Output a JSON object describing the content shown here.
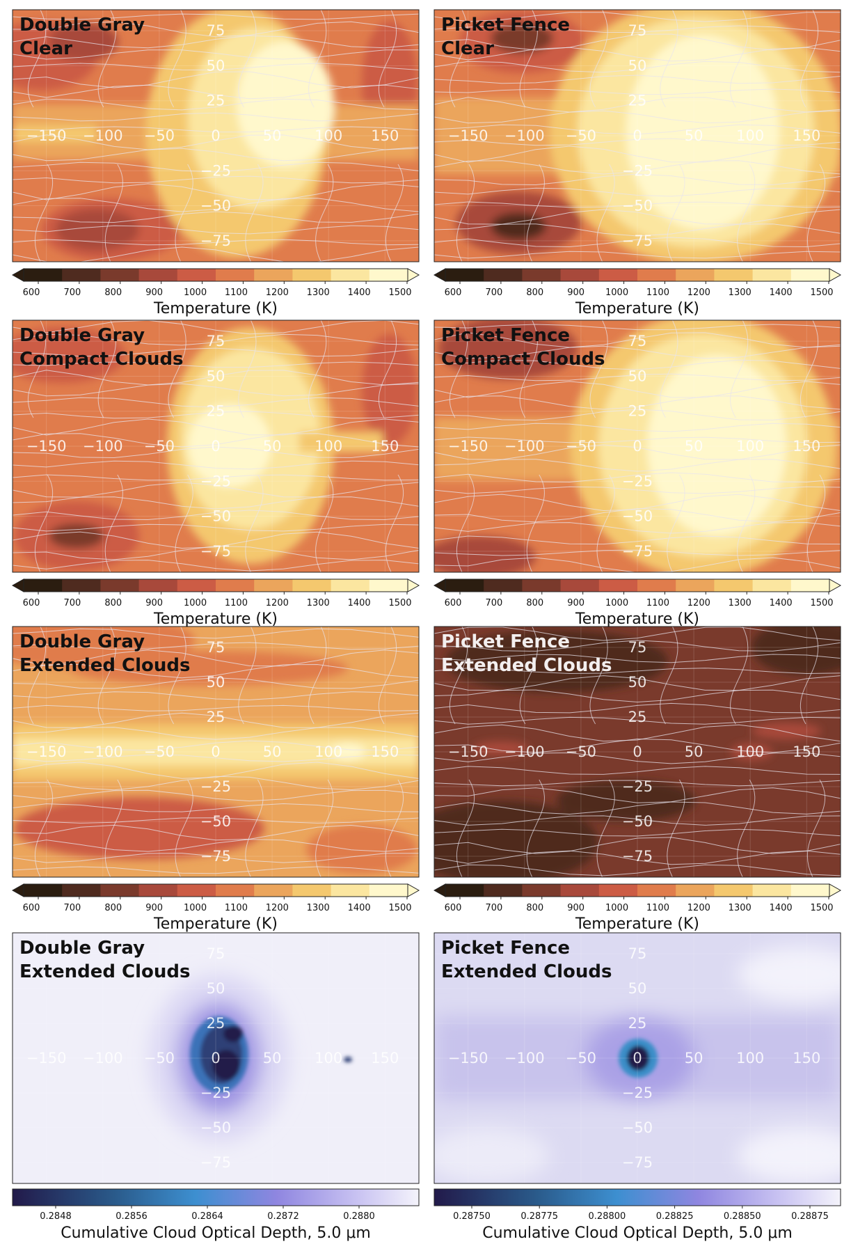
{
  "temperature_colorbar": {
    "ticks": [
      "600",
      "700",
      "800",
      "900",
      "1000",
      "1100",
      "1200",
      "1300",
      "1400",
      "1500"
    ],
    "label": "Temperature (K)",
    "colors": [
      "#2b1d10",
      "#4f2b1f",
      "#7a3a2c",
      "#a8493b",
      "#cc5c45",
      "#e07c4c",
      "#eba55c",
      "#f4c86e",
      "#fbe6a0",
      "#fff8cc"
    ]
  },
  "optical_colorbar": {
    "left": {
      "ticks": [
        "0.2848",
        "0.2856",
        "0.2864",
        "0.2872",
        "0.2880"
      ],
      "label": "Cumulative Cloud Optical Depth, 5.0 μm"
    },
    "right": {
      "ticks": [
        "0.28750",
        "0.28775",
        "0.28800",
        "0.28825",
        "0.28850",
        "0.28875"
      ],
      "label": "Cumulative Cloud Optical Depth, 5.0 μm"
    }
  },
  "axis_ticks": {
    "x": [
      "−150",
      "−100",
      "−50",
      "0",
      "50",
      "100",
      "150"
    ],
    "y": [
      "75",
      "50",
      "25",
      "−25",
      "−50",
      "−75"
    ]
  },
  "panels": [
    {
      "id": "dg-clear",
      "title_line1": "Double Gray",
      "title_line2": "Clear"
    },
    {
      "id": "pf-clear",
      "title_line1": "Picket Fence",
      "title_line2": "Clear"
    },
    {
      "id": "dg-compact",
      "title_line1": "Double Gray",
      "title_line2": "Compact Clouds"
    },
    {
      "id": "pf-compact",
      "title_line1": "Picket Fence",
      "title_line2": "Compact Clouds"
    },
    {
      "id": "dg-extended",
      "title_line1": "Double Gray",
      "title_line2": "Extended Clouds"
    },
    {
      "id": "pf-extended",
      "title_line1": "Picket Fence",
      "title_line2": "Extended Clouds"
    },
    {
      "id": "dg-optical",
      "title_line1": "Double Gray",
      "title_line2": "Extended Clouds"
    },
    {
      "id": "pf-optical",
      "title_line1": "Picket Fence",
      "title_line2": "Extended Clouds"
    }
  ],
  "chart_data": [
    {
      "type": "heatmap",
      "title": "Double Gray Clear",
      "colorbar_label": "Temperature (K)",
      "xlim": [
        -180,
        180
      ],
      "ylim": [
        -90,
        90
      ],
      "clim": [
        600,
        1500
      ]
    },
    {
      "type": "heatmap",
      "title": "Picket Fence Clear",
      "colorbar_label": "Temperature (K)",
      "xlim": [
        -180,
        180
      ],
      "ylim": [
        -90,
        90
      ],
      "clim": [
        600,
        1500
      ]
    },
    {
      "type": "heatmap",
      "title": "Double Gray Compact Clouds",
      "colorbar_label": "Temperature (K)",
      "xlim": [
        -180,
        180
      ],
      "ylim": [
        -90,
        90
      ],
      "clim": [
        600,
        1500
      ]
    },
    {
      "type": "heatmap",
      "title": "Picket Fence Compact Clouds",
      "colorbar_label": "Temperature (K)",
      "xlim": [
        -180,
        180
      ],
      "ylim": [
        -90,
        90
      ],
      "clim": [
        600,
        1500
      ]
    },
    {
      "type": "heatmap",
      "title": "Double Gray Extended Clouds",
      "colorbar_label": "Temperature (K)",
      "xlim": [
        -180,
        180
      ],
      "ylim": [
        -90,
        90
      ],
      "clim": [
        600,
        1500
      ]
    },
    {
      "type": "heatmap",
      "title": "Picket Fence Extended Clouds",
      "colorbar_label": "Temperature (K)",
      "xlim": [
        -180,
        180
      ],
      "ylim": [
        -90,
        90
      ],
      "clim": [
        600,
        1500
      ]
    },
    {
      "type": "heatmap",
      "title": "Double Gray Extended Clouds",
      "colorbar_label": "Cumulative Cloud Optical Depth, 5.0 μm",
      "xlim": [
        -180,
        180
      ],
      "ylim": [
        -90,
        90
      ],
      "clim": [
        0.2844,
        0.2884
      ]
    },
    {
      "type": "heatmap",
      "title": "Picket Fence Extended Clouds",
      "colorbar_label": "Cumulative Cloud Optical Depth, 5.0 μm",
      "xlim": [
        -180,
        180
      ],
      "ylim": [
        -90,
        90
      ],
      "clim": [
        0.28735,
        0.28885
      ]
    }
  ]
}
